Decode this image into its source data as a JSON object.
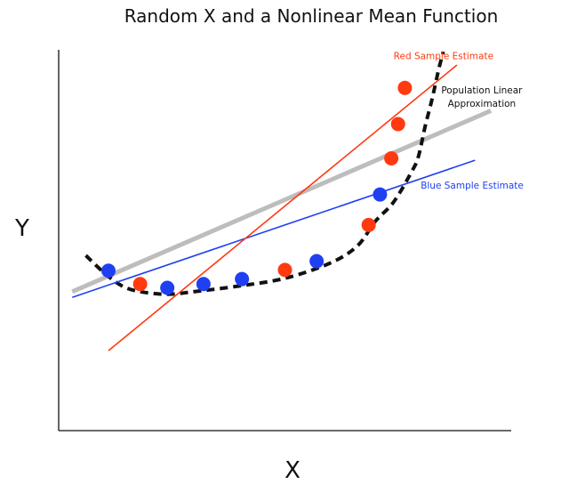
{
  "chart_data": {
    "type": "scatter",
    "title": "Random X and a Nonlinear Mean Function",
    "xlabel": "X",
    "ylabel": "Y",
    "xlim": [
      0,
      100
    ],
    "ylim": [
      0,
      100
    ],
    "grid": false,
    "mean_curve": {
      "style": "dashed",
      "color": "#111111",
      "x": [
        6,
        10,
        14,
        18,
        24,
        30,
        40,
        50,
        60,
        66,
        70,
        74,
        78,
        79.5,
        81,
        82.5,
        84,
        85
      ],
      "y": [
        46,
        41.5,
        38,
        36.5,
        35.8,
        36.5,
        38,
        40,
        44,
        48.5,
        55,
        60,
        68,
        72,
        80,
        87,
        95,
        99.5
      ]
    },
    "points": [
      {
        "x": 11,
        "y": 42,
        "series": "blue",
        "color": "#1f3ff2"
      },
      {
        "x": 18,
        "y": 38.5,
        "series": "red",
        "color": "#ff3a10"
      },
      {
        "x": 24,
        "y": 37.5,
        "series": "blue",
        "color": "#1f3ff2"
      },
      {
        "x": 32,
        "y": 38.5,
        "series": "blue",
        "color": "#1f3ff2"
      },
      {
        "x": 40.5,
        "y": 39.8,
        "series": "blue",
        "color": "#1f3ff2"
      },
      {
        "x": 50,
        "y": 42.2,
        "series": "red",
        "color": "#ff3a10"
      },
      {
        "x": 57,
        "y": 44.5,
        "series": "blue",
        "color": "#1f3ff2"
      },
      {
        "x": 68.5,
        "y": 54,
        "series": "red",
        "color": "#ff3a10"
      },
      {
        "x": 71,
        "y": 62,
        "series": "blue",
        "color": "#1f3ff2"
      },
      {
        "x": 73.5,
        "y": 71.5,
        "series": "red",
        "color": "#ff3a10"
      },
      {
        "x": 75,
        "y": 80.5,
        "series": "red",
        "color": "#ff3a10"
      },
      {
        "x": 76.5,
        "y": 90,
        "series": "red",
        "color": "#ff3a10"
      }
    ],
    "lines": [
      {
        "name": "Population Linear Approximation",
        "color": "#bdbdbd",
        "x": [
          3,
          95.5
        ],
        "y": [
          36.5,
          84
        ]
      },
      {
        "name": "Blue Sample Estimate",
        "color": "#1f3ff2",
        "x": [
          3,
          92
        ],
        "y": [
          35,
          71
        ]
      },
      {
        "name": "Red Sample Estimate",
        "color": "#ff3a10",
        "x": [
          11,
          88
        ],
        "y": [
          21,
          96
        ]
      }
    ],
    "annotations": [
      {
        "text": "Red Sample Estimate",
        "color": "#ff3a10",
        "x": 74,
        "y": 97.5
      },
      {
        "text": "Population Linear",
        "color": "#111111",
        "x": 93.5,
        "y": 88.5
      },
      {
        "text": "Approximation",
        "color": "#111111",
        "x": 93.5,
        "y": 85
      },
      {
        "text": "Blue Sample Estimate",
        "color": "#1f3ff2",
        "x": 80,
        "y": 63.5
      }
    ]
  }
}
